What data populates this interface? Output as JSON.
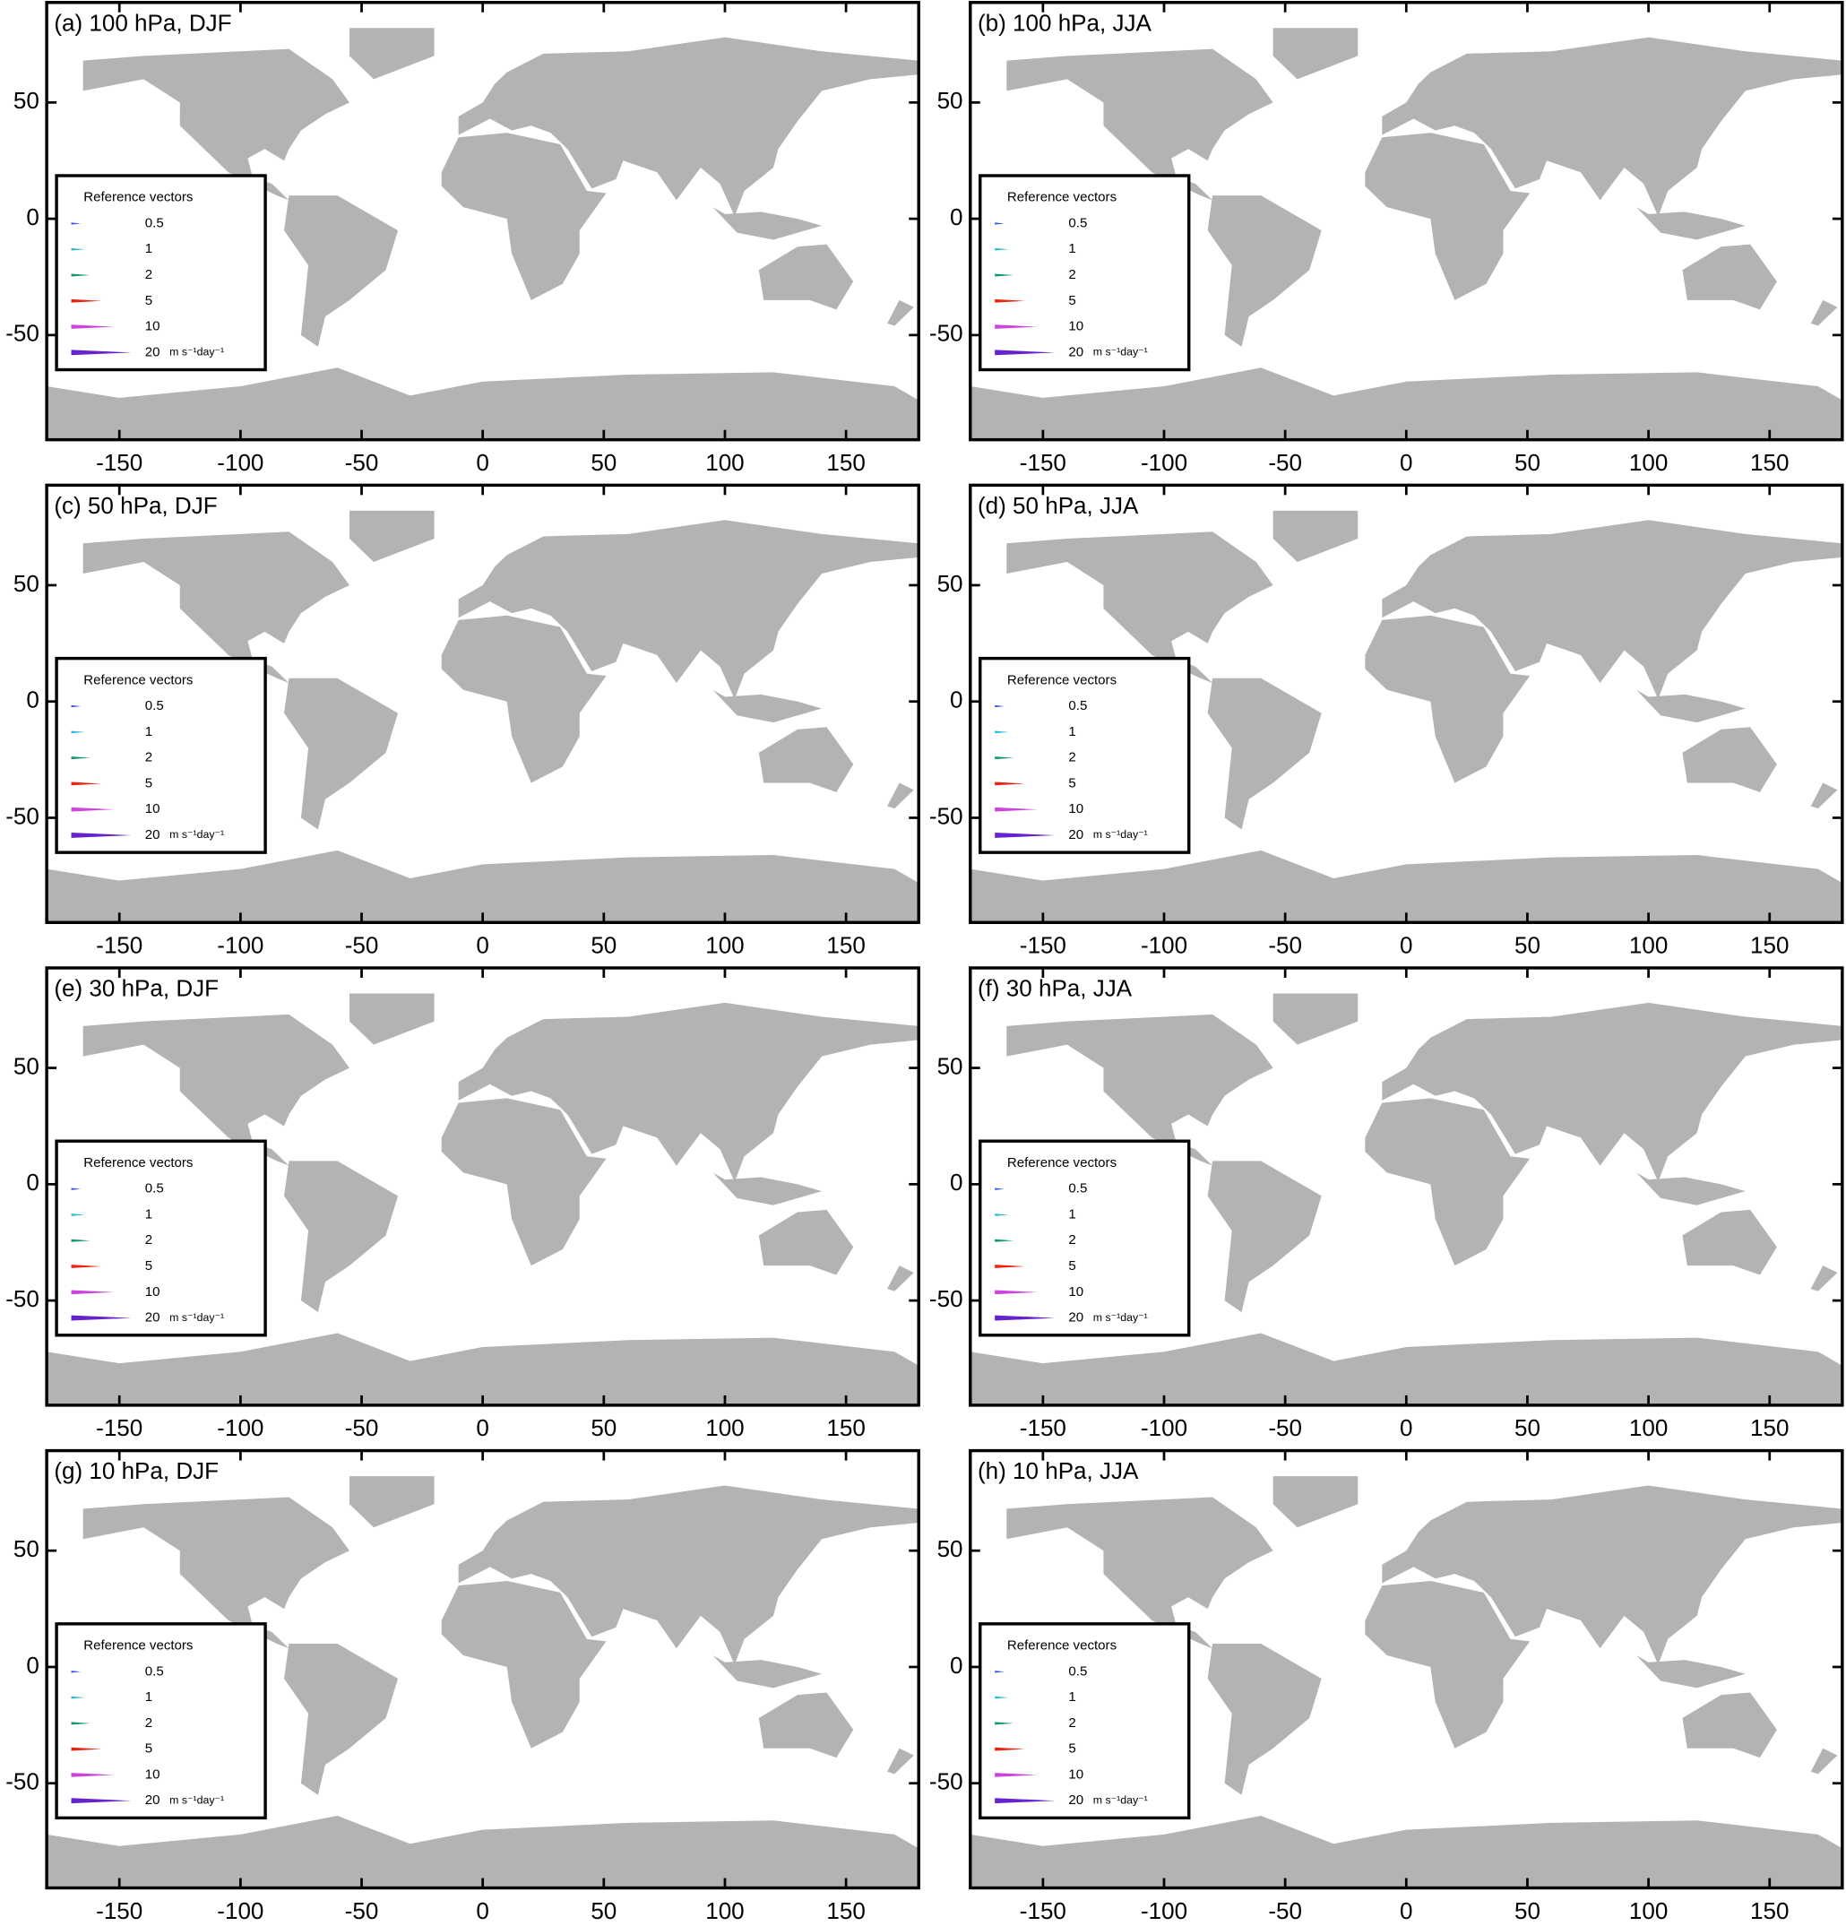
{
  "xlim": [
    -180,
    180
  ],
  "ylim": [
    -95,
    93
  ],
  "xticks": [
    -150,
    -100,
    -50,
    0,
    50,
    100,
    150
  ],
  "yticks": [
    -50,
    0,
    50
  ],
  "legend": {
    "title": "Reference vectors",
    "unit": "m s⁻¹day⁻¹",
    "entries": [
      {
        "value": 0.5,
        "color": "#3355ff"
      },
      {
        "value": 1,
        "color": "#22bbdd"
      },
      {
        "value": 2,
        "color": "#119966"
      },
      {
        "value": 5,
        "color": "#ee2211"
      },
      {
        "value": 10,
        "color": "#cc44dd"
      },
      {
        "value": 20,
        "color": "#6622cc"
      }
    ]
  },
  "panels": [
    {
      "title": "(a) 100 hPa, DJF"
    },
    {
      "title": "(b) 100 hPa, JJA"
    },
    {
      "title": "(c) 50 hPa, DJF"
    },
    {
      "title": "(d) 50 hPa, JJA"
    },
    {
      "title": "(e) 30 hPa, DJF"
    },
    {
      "title": "(f) 30 hPa, JJA"
    },
    {
      "title": "(g) 10 hPa, DJF"
    },
    {
      "title": "(h) 10 hPa, JJA"
    }
  ]
}
